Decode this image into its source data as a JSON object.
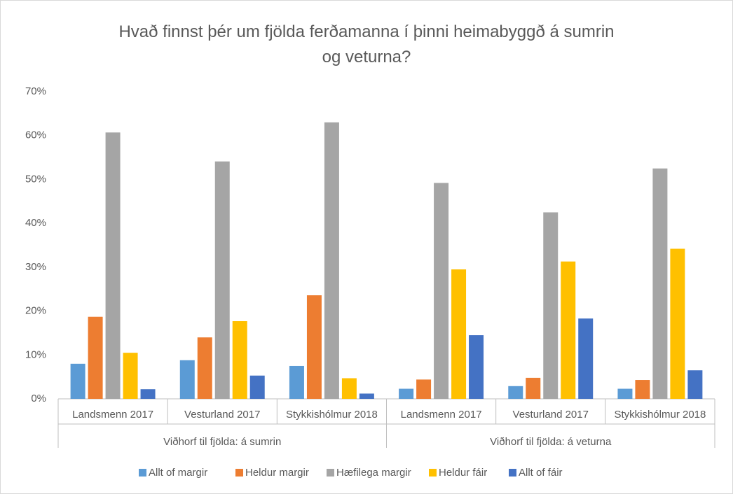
{
  "chart_data": {
    "type": "bar",
    "title": "Hvað finnst þér um fjölda ferðamanna í þinni heimabyggð á sumrin og veturna?",
    "groups": [
      {
        "name": "Viðhorf til fjölda: á sumrin",
        "categories": [
          "Landsmenn 2017",
          "Vesturland 2017",
          "Stykkishólmur 2018"
        ]
      },
      {
        "name": "Viðhorf til fjölda: á veturna",
        "categories": [
          "Landsmenn 2017",
          "Vesturland 2017",
          "Stykkishólmur 2018"
        ]
      }
    ],
    "series": [
      {
        "name": "Allt of margir",
        "color": "#5b9bd5",
        "values": [
          8,
          8.8,
          7.5,
          2.3,
          2.9,
          2.3
        ]
      },
      {
        "name": "Heldur margir",
        "color": "#ed7d31",
        "values": [
          18.7,
          14,
          23.6,
          4.4,
          4.8,
          4.3
        ]
      },
      {
        "name": "Hæfilega margir",
        "color": "#a5a5a5",
        "values": [
          60.7,
          54.1,
          63,
          49.2,
          42.5,
          52.5
        ]
      },
      {
        "name": "Heldur fáir",
        "color": "#ffc000",
        "values": [
          10.5,
          17.7,
          4.7,
          29.5,
          31.3,
          34.2
        ]
      },
      {
        "name": "Allt of fáir",
        "color": "#4472c4",
        "values": [
          2.2,
          5.3,
          1.2,
          14.5,
          18.3,
          6.5
        ]
      }
    ],
    "ylim": [
      0,
      70
    ],
    "yticks": [
      {
        "value": 0,
        "label": "0%"
      },
      {
        "value": 10,
        "label": "10%"
      },
      {
        "value": 20,
        "label": "20%"
      },
      {
        "value": 30,
        "label": "30%"
      },
      {
        "value": 40,
        "label": "40%"
      },
      {
        "value": 50,
        "label": "50%"
      },
      {
        "value": 60,
        "label": "60%"
      },
      {
        "value": 70,
        "label": "70%"
      }
    ],
    "grid": false,
    "legend": "bottom"
  }
}
